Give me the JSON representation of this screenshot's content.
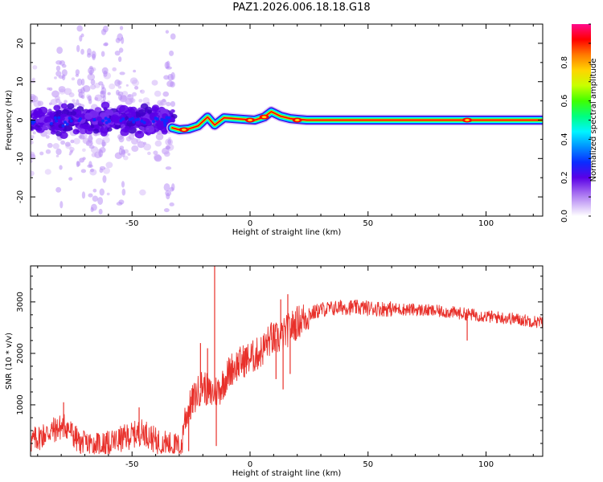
{
  "title": "PAZ1.2026.006.18.18.G18",
  "chart_data": [
    {
      "type": "heatmap",
      "name": "spectrogram",
      "xlabel": "Height of straight line (km)",
      "ylabel": "Frequency (Hz)",
      "xlim": [
        -93,
        124
      ],
      "ylim": [
        -25,
        25
      ],
      "xticks": [
        -50,
        0,
        50,
        100
      ],
      "yticks": [
        -20,
        -10,
        0,
        10,
        20
      ],
      "colorbar": {
        "label": "Normalized spectral amplitude",
        "range": [
          0,
          1
        ],
        "ticks": [
          "0.0",
          "0.2",
          "0.4",
          "0.6",
          "0.8"
        ],
        "colors": [
          "#ffffff",
          "#c9a6f7",
          "#8e55ee",
          "#4a00e0",
          "#0a2cff",
          "#0090ff",
          "#00ffff",
          "#00ff66",
          "#3cff00",
          "#c8ff00",
          "#ffd400",
          "#ff7a00",
          "#ff0000",
          "#ff0a8c"
        ]
      },
      "ridge": [
        {
          "x": -33,
          "y": -2.0
        },
        {
          "x": -30,
          "y": -2.5
        },
        {
          "x": -26,
          "y": -2.3
        },
        {
          "x": -22,
          "y": -1.5
        },
        {
          "x": -18,
          "y": 0.8
        },
        {
          "x": -15,
          "y": -1.3
        },
        {
          "x": -11,
          "y": 0.6
        },
        {
          "x": -7,
          "y": 0.4
        },
        {
          "x": -3,
          "y": 0.2
        },
        {
          "x": 2,
          "y": 0.0
        },
        {
          "x": 6,
          "y": 0.8
        },
        {
          "x": 9,
          "y": 2.2
        },
        {
          "x": 13,
          "y": 1.0
        },
        {
          "x": 17,
          "y": 0.4
        },
        {
          "x": 20,
          "y": 0.2
        },
        {
          "x": 24,
          "y": 0.0
        },
        {
          "x": 124,
          "y": 0.0
        }
      ],
      "peaks": [
        {
          "x": -28,
          "y": -2.5
        },
        {
          "x": 0,
          "y": 0.0
        },
        {
          "x": 6,
          "y": 0.8
        },
        {
          "x": 20,
          "y": 0.0
        },
        {
          "x": 92,
          "y": 0.0
        }
      ],
      "noise_region": {
        "x_start": -93,
        "x_end": -32,
        "central_band_hz": 4,
        "spread_hz": 25
      }
    },
    {
      "type": "line",
      "name": "snr",
      "xlabel": "Height of straight line (km)",
      "ylabel": "SNR (10 * v/v)",
      "xlim": [
        -93,
        124
      ],
      "ylim": [
        0,
        3700
      ],
      "xticks": [
        -50,
        0,
        50,
        100
      ],
      "yticks": [
        1000,
        2000,
        3000
      ],
      "color": "#e8302a",
      "trend": [
        {
          "x": -93,
          "y": 280
        },
        {
          "x": -85,
          "y": 480
        },
        {
          "x": -78,
          "y": 600
        },
        {
          "x": -72,
          "y": 240
        },
        {
          "x": -60,
          "y": 230
        },
        {
          "x": -52,
          "y": 380
        },
        {
          "x": -45,
          "y": 480
        },
        {
          "x": -40,
          "y": 300
        },
        {
          "x": -32,
          "y": 200
        },
        {
          "x": -29,
          "y": 180
        },
        {
          "x": -28,
          "y": 700
        },
        {
          "x": -24,
          "y": 1100
        },
        {
          "x": -20,
          "y": 1400
        },
        {
          "x": -17,
          "y": 1200
        },
        {
          "x": -13,
          "y": 1300
        },
        {
          "x": -8,
          "y": 1700
        },
        {
          "x": -3,
          "y": 1850
        },
        {
          "x": 2,
          "y": 1950
        },
        {
          "x": 5,
          "y": 2050
        },
        {
          "x": 8,
          "y": 2250
        },
        {
          "x": 13,
          "y": 2300
        },
        {
          "x": 16,
          "y": 2450
        },
        {
          "x": 20,
          "y": 2600
        },
        {
          "x": 25,
          "y": 2750
        },
        {
          "x": 30,
          "y": 2850
        },
        {
          "x": 40,
          "y": 2900
        },
        {
          "x": 55,
          "y": 2870
        },
        {
          "x": 70,
          "y": 2850
        },
        {
          "x": 85,
          "y": 2800
        },
        {
          "x": 100,
          "y": 2720
        },
        {
          "x": 110,
          "y": 2680
        },
        {
          "x": 124,
          "y": 2600
        }
      ],
      "spikes": [
        {
          "x": -15,
          "y": 3700
        },
        {
          "x": -14.3,
          "y": 200
        },
        {
          "x": -18,
          "y": 2100
        },
        {
          "x": -21,
          "y": 2200
        },
        {
          "x": -26,
          "y": 100
        },
        {
          "x": 13,
          "y": 3050
        },
        {
          "x": 14,
          "y": 1300
        },
        {
          "x": 16,
          "y": 3150
        },
        {
          "x": 17,
          "y": 1600
        },
        {
          "x": 9,
          "y": 2600
        },
        {
          "x": 11,
          "y": 1500
        },
        {
          "x": -79,
          "y": 1050
        },
        {
          "x": -47,
          "y": 950
        },
        {
          "x": 92,
          "y": 2250
        }
      ]
    }
  ]
}
